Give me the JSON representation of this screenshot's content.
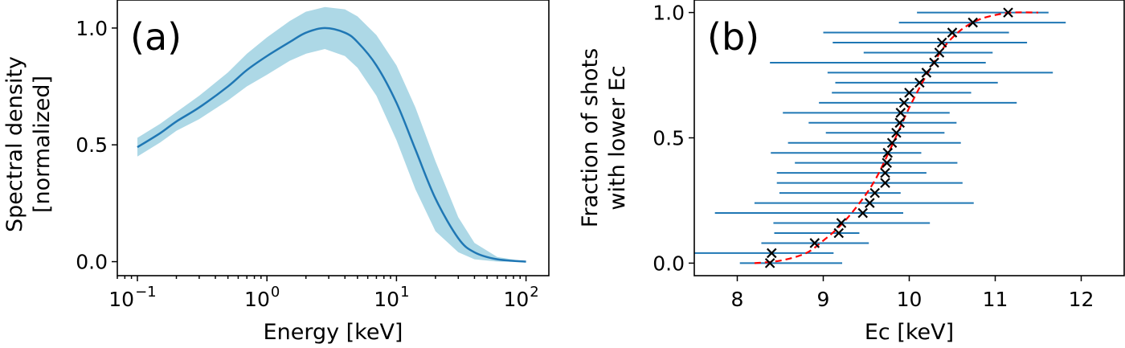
{
  "chart_data": [
    {
      "type": "line",
      "panel_label": "(a)",
      "xlabel": "Energy [keV]",
      "ylabel": "Spectral density",
      "ylabel_line2": "[normalized]",
      "x_scale": "log",
      "xlim": [
        0.07,
        150
      ],
      "ylim": [
        -0.06,
        1.12
      ],
      "xticks": [
        {
          "value": 0.1,
          "base": "10",
          "exp": "−1"
        },
        {
          "value": 1,
          "base": "10",
          "exp": "0"
        },
        {
          "value": 10,
          "base": "10",
          "exp": "1"
        },
        {
          "value": 100,
          "base": "10",
          "exp": "2"
        }
      ],
      "yticks": [
        {
          "value": 0.0,
          "label": "0.0"
        },
        {
          "value": 0.5,
          "label": "0.5"
        },
        {
          "value": 1.0,
          "label": "1.0"
        }
      ],
      "line_color": "#1f77b4",
      "band_color": "#add8e6",
      "x": [
        0.1,
        0.15,
        0.2,
        0.3,
        0.5,
        0.7,
        1.0,
        1.5,
        2.0,
        2.8,
        4.0,
        5.0,
        7.0,
        10,
        14,
        20,
        30,
        40,
        60,
        100
      ],
      "y": [
        0.49,
        0.55,
        0.6,
        0.66,
        0.75,
        0.82,
        0.88,
        0.94,
        0.98,
        1.0,
        0.98,
        0.94,
        0.84,
        0.68,
        0.48,
        0.27,
        0.1,
        0.04,
        0.01,
        0.0
      ],
      "y_upper": [
        0.53,
        0.59,
        0.64,
        0.71,
        0.81,
        0.89,
        0.96,
        1.03,
        1.07,
        1.09,
        1.08,
        1.05,
        0.97,
        0.84,
        0.66,
        0.43,
        0.19,
        0.08,
        0.02,
        0.0
      ],
      "y_lower": [
        0.45,
        0.51,
        0.56,
        0.61,
        0.69,
        0.75,
        0.8,
        0.86,
        0.89,
        0.91,
        0.88,
        0.83,
        0.71,
        0.52,
        0.31,
        0.13,
        0.04,
        0.01,
        0.0,
        0.0
      ]
    },
    {
      "type": "scatter",
      "panel_label": "(b)",
      "xlabel": "Ec [keV]",
      "ylabel": "Fraction of shots",
      "ylabel_line2": "with lower Ec",
      "xlim": [
        7.5,
        12.5
      ],
      "ylim": [
        -0.05,
        1.05
      ],
      "xticks": [
        {
          "value": 8,
          "label": "8"
        },
        {
          "value": 9,
          "label": "9"
        },
        {
          "value": 10,
          "label": "10"
        },
        {
          "value": 11,
          "label": "11"
        },
        {
          "value": 12,
          "label": "12"
        }
      ],
      "yticks": [
        {
          "value": 0.0,
          "label": "0.0"
        },
        {
          "value": 0.5,
          "label": "0.5"
        },
        {
          "value": 1.0,
          "label": "1.0"
        }
      ],
      "marker_color": "#000000",
      "errorbar_color": "#1f77b4",
      "fit_color": "#ff0000",
      "points": [
        {
          "x": 8.38,
          "y": 0.0,
          "xmin": 8.03,
          "xmax": 9.22
        },
        {
          "x": 8.4,
          "y": 0.04,
          "xmin": 7.35,
          "xmax": 9.12
        },
        {
          "x": 8.9,
          "y": 0.08,
          "xmin": 8.28,
          "xmax": 9.53
        },
        {
          "x": 9.18,
          "y": 0.12,
          "xmin": 8.43,
          "xmax": 9.42
        },
        {
          "x": 9.21,
          "y": 0.16,
          "xmin": 8.42,
          "xmax": 10.24
        },
        {
          "x": 9.46,
          "y": 0.2,
          "xmin": 7.74,
          "xmax": 9.93
        },
        {
          "x": 9.54,
          "y": 0.24,
          "xmin": 8.2,
          "xmax": 10.75
        },
        {
          "x": 9.6,
          "y": 0.28,
          "xmin": 8.49,
          "xmax": 9.9
        },
        {
          "x": 9.72,
          "y": 0.32,
          "xmin": 8.46,
          "xmax": 10.62
        },
        {
          "x": 9.72,
          "y": 0.36,
          "xmin": 8.46,
          "xmax": 10.2
        },
        {
          "x": 9.74,
          "y": 0.4,
          "xmin": 8.67,
          "xmax": 10.56
        },
        {
          "x": 9.75,
          "y": 0.44,
          "xmin": 8.39,
          "xmax": 10.14
        },
        {
          "x": 9.8,
          "y": 0.48,
          "xmin": 8.59,
          "xmax": 10.6
        },
        {
          "x": 9.85,
          "y": 0.52,
          "xmin": 9.03,
          "xmax": 10.41
        },
        {
          "x": 9.89,
          "y": 0.56,
          "xmin": 8.83,
          "xmax": 10.55
        },
        {
          "x": 9.9,
          "y": 0.6,
          "xmin": 8.53,
          "xmax": 10.47
        },
        {
          "x": 9.94,
          "y": 0.64,
          "xmin": 8.95,
          "xmax": 11.25
        },
        {
          "x": 10.0,
          "y": 0.68,
          "xmin": 9.1,
          "xmax": 10.72
        },
        {
          "x": 10.12,
          "y": 0.72,
          "xmin": 9.14,
          "xmax": 11.03
        },
        {
          "x": 10.2,
          "y": 0.76,
          "xmin": 9.05,
          "xmax": 11.67
        },
        {
          "x": 10.29,
          "y": 0.8,
          "xmin": 8.38,
          "xmax": 10.89
        },
        {
          "x": 10.35,
          "y": 0.84,
          "xmin": 9.47,
          "xmax": 10.97
        },
        {
          "x": 10.38,
          "y": 0.88,
          "xmin": 9.11,
          "xmax": 11.37
        },
        {
          "x": 10.5,
          "y": 0.92,
          "xmin": 9.0,
          "xmax": 11.16
        },
        {
          "x": 10.74,
          "y": 0.96,
          "xmin": 9.88,
          "xmax": 11.82
        },
        {
          "x": 11.15,
          "y": 1.0,
          "xmin": 10.09,
          "xmax": 11.62
        }
      ],
      "fit_x": [
        8.2,
        8.5,
        8.8,
        9.0,
        9.2,
        9.4,
        9.6,
        9.8,
        10.0,
        10.2,
        10.4,
        10.6,
        10.8,
        11.0,
        11.2,
        11.5
      ],
      "fit_y": [
        0.0,
        0.01,
        0.04,
        0.09,
        0.15,
        0.23,
        0.33,
        0.47,
        0.62,
        0.75,
        0.86,
        0.93,
        0.97,
        0.99,
        1.0,
        1.0
      ]
    }
  ]
}
